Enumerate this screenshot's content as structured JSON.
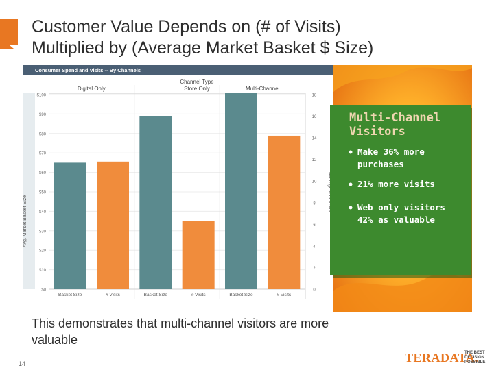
{
  "slide": {
    "title_line1": "Customer Value Depends on (# of Visits)",
    "title_line2": "Multiplied by (Average Market Basket $ Size)",
    "caption_line1": "This demonstrates that multi-channel visitors are more",
    "caption_line2": "valuable",
    "page_number": "14",
    "brand": "TERADATA.",
    "tagline": [
      "THE BEST",
      "DECISION",
      "POSSIBLE"
    ],
    "colors": {
      "accent": "#e87722",
      "teal": "#5b8a8e",
      "orange": "#f08c3c",
      "green": "#3d8a2e"
    }
  },
  "callout": {
    "heading_line1": "Multi-Channel",
    "heading_line2": "Visitors",
    "bullets": [
      {
        "line1": "Make 36% more",
        "line2": "purchases"
      },
      {
        "line1": "21% more visits",
        "line2": ""
      },
      {
        "line1": "Web only visitors",
        "line2": "42% as valuable"
      }
    ]
  },
  "chart_data": {
    "type": "bar",
    "title": "Consumer Spend and Visits -- By Channels",
    "header_label_line1": "Channel Type",
    "header_label_line2": "Store Only",
    "groups": [
      "Digital Only",
      "Store Only",
      "Multi-Channel"
    ],
    "ylabel_left": "Avg. Market Basket Size",
    "ylabel_right": "Average # of Visits",
    "left_axis": {
      "min": 0,
      "max": 100,
      "ticks": [
        0,
        10,
        20,
        30,
        40,
        50,
        60,
        70,
        80,
        90,
        100
      ],
      "tick_labels": [
        "$0",
        "$10",
        "$20",
        "$30",
        "$40",
        "$50",
        "$60",
        "$70",
        "$80",
        "$90",
        "$100"
      ]
    },
    "right_axis": {
      "min": 0,
      "max": 18,
      "ticks": [
        0,
        2,
        4,
        6,
        8,
        10,
        12,
        14,
        16,
        18
      ],
      "tick_labels": [
        "0",
        "2",
        "4",
        "6",
        "8",
        "10",
        "12",
        "14",
        "16",
        "18"
      ]
    },
    "bar_labels": [
      "Basket Size",
      "# Visits"
    ],
    "series": [
      {
        "name": "Basket Size",
        "axis": "left",
        "values": [
          65,
          89,
          101
        ]
      },
      {
        "name": "# Visits",
        "axis": "right",
        "values": [
          11.8,
          6.3,
          14.2
        ]
      }
    ]
  }
}
